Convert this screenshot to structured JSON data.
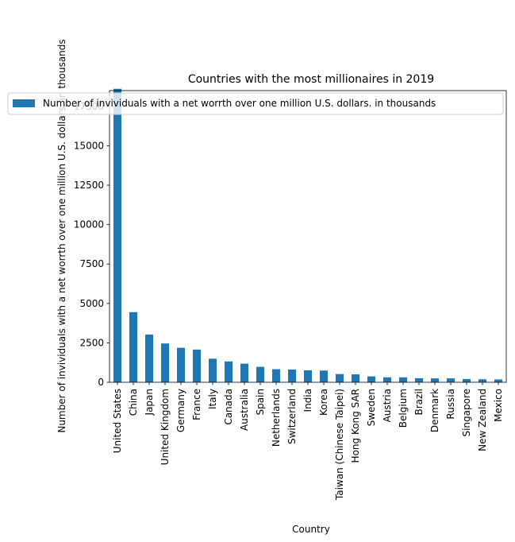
{
  "chart_data": {
    "type": "bar",
    "title": "Countries with the most millionaires in 2019",
    "xlabel": "Country",
    "ylabel": "Number of invividuals with a net worrth over one million U.S. dollars. in thousands",
    "legend": {
      "label": "Number of invividuals with a net worrth over one million U.S. dollars. in thousands",
      "placement": "top"
    },
    "color": "#1f77b4",
    "grid": false,
    "ylim": [
      0,
      18500
    ],
    "yticks": [
      0,
      2500,
      5000,
      7500,
      10000,
      12500,
      15000,
      17500
    ],
    "categories": [
      "United States",
      "China",
      "Japan",
      "United Kingdom",
      "Germany",
      "France",
      "Italy",
      "Canada",
      "Australia",
      "Spain",
      "Netherlands",
      "Switzerland",
      "India",
      "Korea",
      "Taiwan (Chinese Taipei)",
      "Hong Kong SAR",
      "Sweden",
      "Austria",
      "Belgium",
      "Brazil",
      "Denmark",
      "Russia",
      "Singapore",
      "New Zealand",
      "Mexico"
    ],
    "values": [
      18614,
      4447,
      3025,
      2460,
      2187,
      2073,
      1496,
      1322,
      1180,
      979,
      829,
      810,
      759,
      741,
      519,
      502,
      373,
      314,
      314,
      259,
      246,
      246,
      207,
      188,
      180
    ]
  }
}
